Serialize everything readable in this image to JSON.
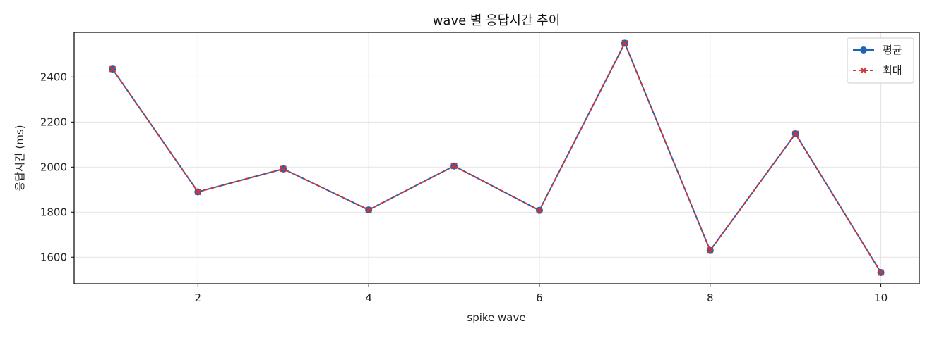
{
  "chart_data": {
    "type": "line",
    "title": "wave 별 응답시간 추이",
    "xlabel": "spike wave",
    "ylabel": "응답시간 (ms)",
    "x": [
      1,
      2,
      3,
      4,
      5,
      6,
      7,
      8,
      9,
      10
    ],
    "xlim": [
      0.55,
      10.45
    ],
    "ylim": [
      1482,
      2598
    ],
    "xticks": [
      2,
      4,
      6,
      8,
      10
    ],
    "yticks": [
      1600,
      1800,
      2000,
      2200,
      2400
    ],
    "grid": true,
    "legend_position": "top-right",
    "series": [
      {
        "name": "평균",
        "color": "#1f63b4",
        "line_style": "solid",
        "marker": "circle",
        "values": [
          2435,
          1890,
          1992,
          1810,
          2005,
          1808,
          2550,
          1630,
          2148,
          1532
        ]
      },
      {
        "name": "최대",
        "color": "#d03535",
        "line_style": "dashed",
        "marker": "x",
        "values": [
          2435,
          1890,
          1992,
          1810,
          2005,
          1808,
          2550,
          1630,
          2148,
          1532
        ]
      }
    ]
  }
}
